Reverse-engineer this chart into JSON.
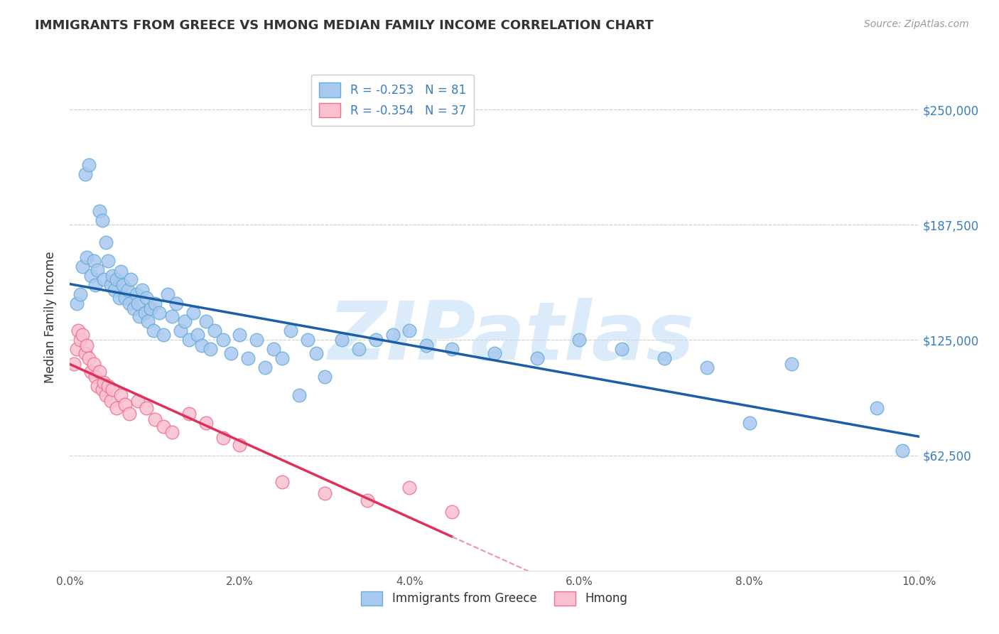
{
  "title": "IMMIGRANTS FROM GREECE VS HMONG MEDIAN FAMILY INCOME CORRELATION CHART",
  "source": "Source: ZipAtlas.com",
  "ylabel": "Median Family Income",
  "ytick_values": [
    62500,
    125000,
    187500,
    250000
  ],
  "xmin": 0.0,
  "xmax": 10.0,
  "ymin": 0,
  "ymax": 275000,
  "watermark": "ZIPatlas",
  "watermark_color": "#c5dff5",
  "blue_face": "#a8c8f0",
  "blue_edge": "#6aaed6",
  "pink_face": "#f9c0d0",
  "pink_edge": "#f07090",
  "line_blue": "#1a5fa8",
  "line_pink": "#e0305a",
  "line_pink_dash": "#f48fb1",
  "legend_blue_label": "R = -0.253   N = 81",
  "legend_pink_label": "R = -0.354   N = 37",
  "legend_bottom_blue": "Immigrants from Greece",
  "legend_bottom_pink": "Hmong",
  "greece_x": [
    0.08,
    0.12,
    0.15,
    0.18,
    0.2,
    0.22,
    0.25,
    0.28,
    0.3,
    0.32,
    0.35,
    0.38,
    0.4,
    0.42,
    0.45,
    0.48,
    0.5,
    0.52,
    0.55,
    0.58,
    0.6,
    0.62,
    0.65,
    0.68,
    0.7,
    0.72,
    0.75,
    0.78,
    0.8,
    0.82,
    0.85,
    0.88,
    0.9,
    0.92,
    0.95,
    0.98,
    1.0,
    1.05,
    1.1,
    1.15,
    1.2,
    1.25,
    1.3,
    1.35,
    1.4,
    1.45,
    1.5,
    1.55,
    1.6,
    1.65,
    1.7,
    1.8,
    1.9,
    2.0,
    2.1,
    2.2,
    2.3,
    2.4,
    2.5,
    2.6,
    2.7,
    2.8,
    2.9,
    3.0,
    3.2,
    3.4,
    3.6,
    3.8,
    4.0,
    4.2,
    4.5,
    5.0,
    5.5,
    6.0,
    6.5,
    7.0,
    7.5,
    8.0,
    8.5,
    9.5,
    9.8
  ],
  "greece_y": [
    145000,
    150000,
    165000,
    215000,
    170000,
    220000,
    160000,
    168000,
    155000,
    163000,
    195000,
    190000,
    158000,
    178000,
    168000,
    155000,
    160000,
    152000,
    158000,
    148000,
    162000,
    155000,
    148000,
    152000,
    145000,
    158000,
    142000,
    150000,
    145000,
    138000,
    152000,
    140000,
    148000,
    135000,
    142000,
    130000,
    145000,
    140000,
    128000,
    150000,
    138000,
    145000,
    130000,
    135000,
    125000,
    140000,
    128000,
    122000,
    135000,
    120000,
    130000,
    125000,
    118000,
    128000,
    115000,
    125000,
    110000,
    120000,
    115000,
    130000,
    95000,
    125000,
    118000,
    105000,
    125000,
    120000,
    125000,
    128000,
    130000,
    122000,
    120000,
    118000,
    115000,
    125000,
    120000,
    115000,
    110000,
    80000,
    112000,
    88000,
    65000
  ],
  "hmong_x": [
    0.05,
    0.08,
    0.1,
    0.12,
    0.15,
    0.18,
    0.2,
    0.22,
    0.25,
    0.28,
    0.3,
    0.32,
    0.35,
    0.38,
    0.4,
    0.42,
    0.45,
    0.48,
    0.5,
    0.55,
    0.6,
    0.65,
    0.7,
    0.8,
    0.9,
    1.0,
    1.1,
    1.2,
    1.4,
    1.6,
    1.8,
    2.0,
    2.5,
    3.0,
    3.5,
    4.0,
    4.5
  ],
  "hmong_y": [
    112000,
    120000,
    130000,
    125000,
    128000,
    118000,
    122000,
    115000,
    108000,
    112000,
    105000,
    100000,
    108000,
    98000,
    102000,
    95000,
    100000,
    92000,
    98000,
    88000,
    95000,
    90000,
    85000,
    92000,
    88000,
    82000,
    78000,
    75000,
    85000,
    80000,
    72000,
    68000,
    48000,
    42000,
    38000,
    45000,
    32000
  ],
  "hmong_solid_end": 4.5,
  "xtick_vals": [
    0.0,
    2.0,
    4.0,
    6.0,
    8.0,
    10.0
  ],
  "xtick_labels": [
    "0.0%",
    "2.0%",
    "4.0%",
    "6.0%",
    "8.0%",
    "10.0%"
  ]
}
